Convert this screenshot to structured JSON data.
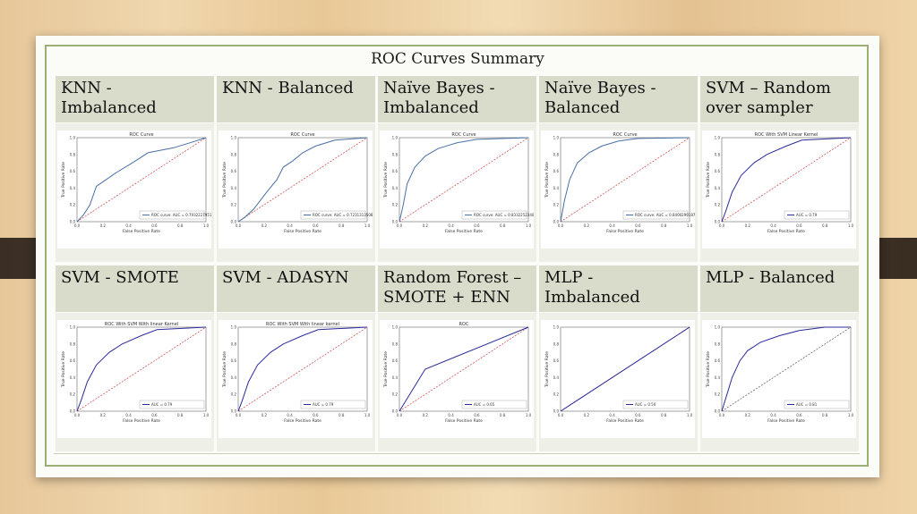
{
  "slide": {
    "title": "ROC Curves Summary",
    "cells": [
      {
        "label": "KNN - Imbalanced",
        "plot_title": "ROC Curve",
        "xlabel": "False Positive Rate",
        "ylabel": "True Positive Rate",
        "legend": "ROC curve: AUC = 0.79322279516",
        "curve_color": "#4a6fa5",
        "chance_color": "#d23c3c",
        "ticks_x": [
          "0.0",
          "0.2",
          "0.4",
          "0.6",
          "0.8",
          "1.0"
        ],
        "ticks_y": [
          "0.0",
          "0.2",
          "0.4",
          "0.6",
          "0.8",
          "1.0"
        ],
        "curve": [
          [
            0,
            0
          ],
          [
            0.05,
            0.08
          ],
          [
            0.1,
            0.2
          ],
          [
            0.15,
            0.42
          ],
          [
            0.3,
            0.58
          ],
          [
            0.45,
            0.72
          ],
          [
            0.55,
            0.82
          ],
          [
            0.75,
            0.88
          ],
          [
            0.9,
            0.95
          ],
          [
            1,
            1
          ]
        ]
      },
      {
        "label": "KNN - Balanced",
        "plot_title": "ROC Curve",
        "xlabel": "False Positive Rate",
        "ylabel": "True Positive Rate",
        "legend": "ROC curve: AUC = 0.7231313S088",
        "curve_color": "#4a6fa5",
        "chance_color": "#d23c3c",
        "ticks_x": [
          "0.0",
          "0.2",
          "0.4",
          "0.6",
          "0.8",
          "1.0"
        ],
        "ticks_y": [
          "0.0",
          "0.2",
          "0.4",
          "0.6",
          "0.8",
          "1.0"
        ],
        "curve": [
          [
            0,
            0
          ],
          [
            0.05,
            0.05
          ],
          [
            0.12,
            0.15
          ],
          [
            0.22,
            0.35
          ],
          [
            0.3,
            0.5
          ],
          [
            0.35,
            0.65
          ],
          [
            0.42,
            0.72
          ],
          [
            0.5,
            0.82
          ],
          [
            0.6,
            0.9
          ],
          [
            0.75,
            0.97
          ],
          [
            1,
            1
          ]
        ]
      },
      {
        "label": "Naïve Bayes - Imbalanced",
        "plot_title": "ROC Curve",
        "xlabel": "False Positive Rate",
        "ylabel": "True Positive Rate",
        "legend": "ROC curve: AUC = 0.833225234070",
        "curve_color": "#4a6fa5",
        "chance_color": "#d23c3c",
        "ticks_x": [
          "0.0",
          "0.2",
          "0.4",
          "0.6",
          "0.8",
          "1.0"
        ],
        "ticks_y": [
          "0.0",
          "0.2",
          "0.4",
          "0.6",
          "0.8",
          "1.0"
        ],
        "curve": [
          [
            0,
            0
          ],
          [
            0.03,
            0.2
          ],
          [
            0.06,
            0.45
          ],
          [
            0.12,
            0.65
          ],
          [
            0.2,
            0.78
          ],
          [
            0.3,
            0.87
          ],
          [
            0.45,
            0.94
          ],
          [
            0.6,
            0.98
          ],
          [
            1,
            1
          ]
        ]
      },
      {
        "label": "Naïve Bayes - Balanced",
        "plot_title": "ROC Curve",
        "xlabel": "False Positive Rate",
        "ylabel": "True Positive Rate",
        "legend": "ROC curve: AUC = 0.840029918779",
        "curve_color": "#4a6fa5",
        "chance_color": "#d23c3c",
        "ticks_x": [
          "0.0",
          "0.2",
          "0.4",
          "0.6",
          "0.8",
          "1.0"
        ],
        "ticks_y": [
          "0.0",
          "0.2",
          "0.4",
          "0.6",
          "0.8",
          "1.0"
        ],
        "curve": [
          [
            0,
            0
          ],
          [
            0.03,
            0.25
          ],
          [
            0.07,
            0.5
          ],
          [
            0.13,
            0.7
          ],
          [
            0.22,
            0.82
          ],
          [
            0.32,
            0.9
          ],
          [
            0.45,
            0.96
          ],
          [
            0.6,
            0.99
          ],
          [
            1,
            1
          ]
        ]
      },
      {
        "label": "SVM – Random over sampler",
        "plot_title": "ROC With SVM Linear Kernel",
        "xlabel": "False Positive Rate",
        "ylabel": "True Positive Rate",
        "legend": "AUC = 0.79",
        "curve_color": "#2b2b9c",
        "chance_color": "#d23c3c",
        "ticks_x": [
          "0.0",
          "0.2",
          "0.4",
          "0.6",
          "0.8",
          "1.0"
        ],
        "ticks_y": [
          "0.0",
          "0.2",
          "0.4",
          "0.6",
          "0.8",
          "1.0"
        ],
        "curve": [
          [
            0,
            0
          ],
          [
            0.03,
            0.12
          ],
          [
            0.08,
            0.35
          ],
          [
            0.15,
            0.55
          ],
          [
            0.25,
            0.7
          ],
          [
            0.35,
            0.8
          ],
          [
            0.5,
            0.9
          ],
          [
            0.62,
            0.97
          ],
          [
            1,
            1
          ]
        ]
      },
      {
        "label": "SVM - SMOTE",
        "plot_title": "ROC With SVM With linear Kernel",
        "xlabel": "False Positive Rate",
        "ylabel": "True Positive Rate",
        "legend": "AUC = 0.79",
        "curve_color": "#2b2b9c",
        "chance_color": "#d23c3c",
        "ticks_x": [
          "0.0",
          "0.2",
          "0.4",
          "0.6",
          "0.8",
          "1.0"
        ],
        "ticks_y": [
          "0.0",
          "0.2",
          "0.4",
          "0.6",
          "0.8",
          "1.0"
        ],
        "curve": [
          [
            0,
            0
          ],
          [
            0.03,
            0.12
          ],
          [
            0.08,
            0.35
          ],
          [
            0.15,
            0.55
          ],
          [
            0.25,
            0.7
          ],
          [
            0.35,
            0.8
          ],
          [
            0.5,
            0.9
          ],
          [
            0.62,
            0.97
          ],
          [
            1,
            1
          ]
        ]
      },
      {
        "label": "SVM - ADASYN",
        "plot_title": "ROC With SVM With linear kernel",
        "xlabel": "False Positive Rate",
        "ylabel": "True Positive Rate",
        "legend": "AUC = 0.79",
        "curve_color": "#2b2b9c",
        "chance_color": "#d23c3c",
        "ticks_x": [
          "0.0",
          "0.2",
          "0.4",
          "0.6",
          "0.8",
          "1.0"
        ],
        "ticks_y": [
          "0.0",
          "0.2",
          "0.4",
          "0.6",
          "0.8",
          "1.0"
        ],
        "curve": [
          [
            0,
            0
          ],
          [
            0.03,
            0.12
          ],
          [
            0.08,
            0.35
          ],
          [
            0.15,
            0.55
          ],
          [
            0.25,
            0.7
          ],
          [
            0.35,
            0.8
          ],
          [
            0.5,
            0.9
          ],
          [
            0.62,
            0.97
          ],
          [
            1,
            1
          ]
        ]
      },
      {
        "label": "Random Forest – SMOTE + ENN",
        "plot_title": "ROC",
        "xlabel": "False Positive Rate",
        "ylabel": "True Positive Rate",
        "legend": "AUC = 0.65",
        "curve_color": "#2b2b9c",
        "chance_color": "#d23c3c",
        "ticks_x": [
          "0.0",
          "0.2",
          "0.4",
          "0.6",
          "0.8",
          "1.0"
        ],
        "ticks_y": [
          "0.0",
          "0.2",
          "0.4",
          "0.6",
          "0.8",
          "1.0"
        ],
        "curve": [
          [
            0,
            0
          ],
          [
            0.2,
            0.5
          ],
          [
            1,
            1
          ]
        ]
      },
      {
        "label": "MLP - Imbalanced",
        "plot_title": "",
        "xlabel": "False Positive Rate",
        "ylabel": "True Positive Rate",
        "legend": "AUC = 0.50",
        "curve_color": "#2b2b9c",
        "chance_color": "#555555",
        "ticks_x": [
          "0.0",
          "0.2",
          "0.4",
          "0.6",
          "0.8",
          "1.0"
        ],
        "ticks_y": [
          "0.0",
          "0.2",
          "0.4",
          "0.6",
          "0.8",
          "1.0"
        ],
        "curve": [
          [
            0,
            0
          ],
          [
            1,
            1
          ]
        ]
      },
      {
        "label": "MLP - Balanced",
        "plot_title": "",
        "xlabel": "False Positive Rate",
        "ylabel": "True Positive Rate",
        "legend": "AUC = 0.81",
        "curve_color": "#2b2b9c",
        "chance_color": "#555555",
        "ticks_x": [
          "0.0",
          "0.2",
          "0.4",
          "0.6",
          "0.8",
          "1.0"
        ],
        "ticks_y": [
          "0.0",
          "0.2",
          "0.4",
          "0.6",
          "0.8",
          "1.0"
        ],
        "curve": [
          [
            0,
            0
          ],
          [
            0.04,
            0.2
          ],
          [
            0.08,
            0.4
          ],
          [
            0.14,
            0.6
          ],
          [
            0.2,
            0.72
          ],
          [
            0.3,
            0.82
          ],
          [
            0.45,
            0.9
          ],
          [
            0.6,
            0.96
          ],
          [
            0.8,
            1
          ],
          [
            1,
            1
          ]
        ]
      }
    ]
  }
}
